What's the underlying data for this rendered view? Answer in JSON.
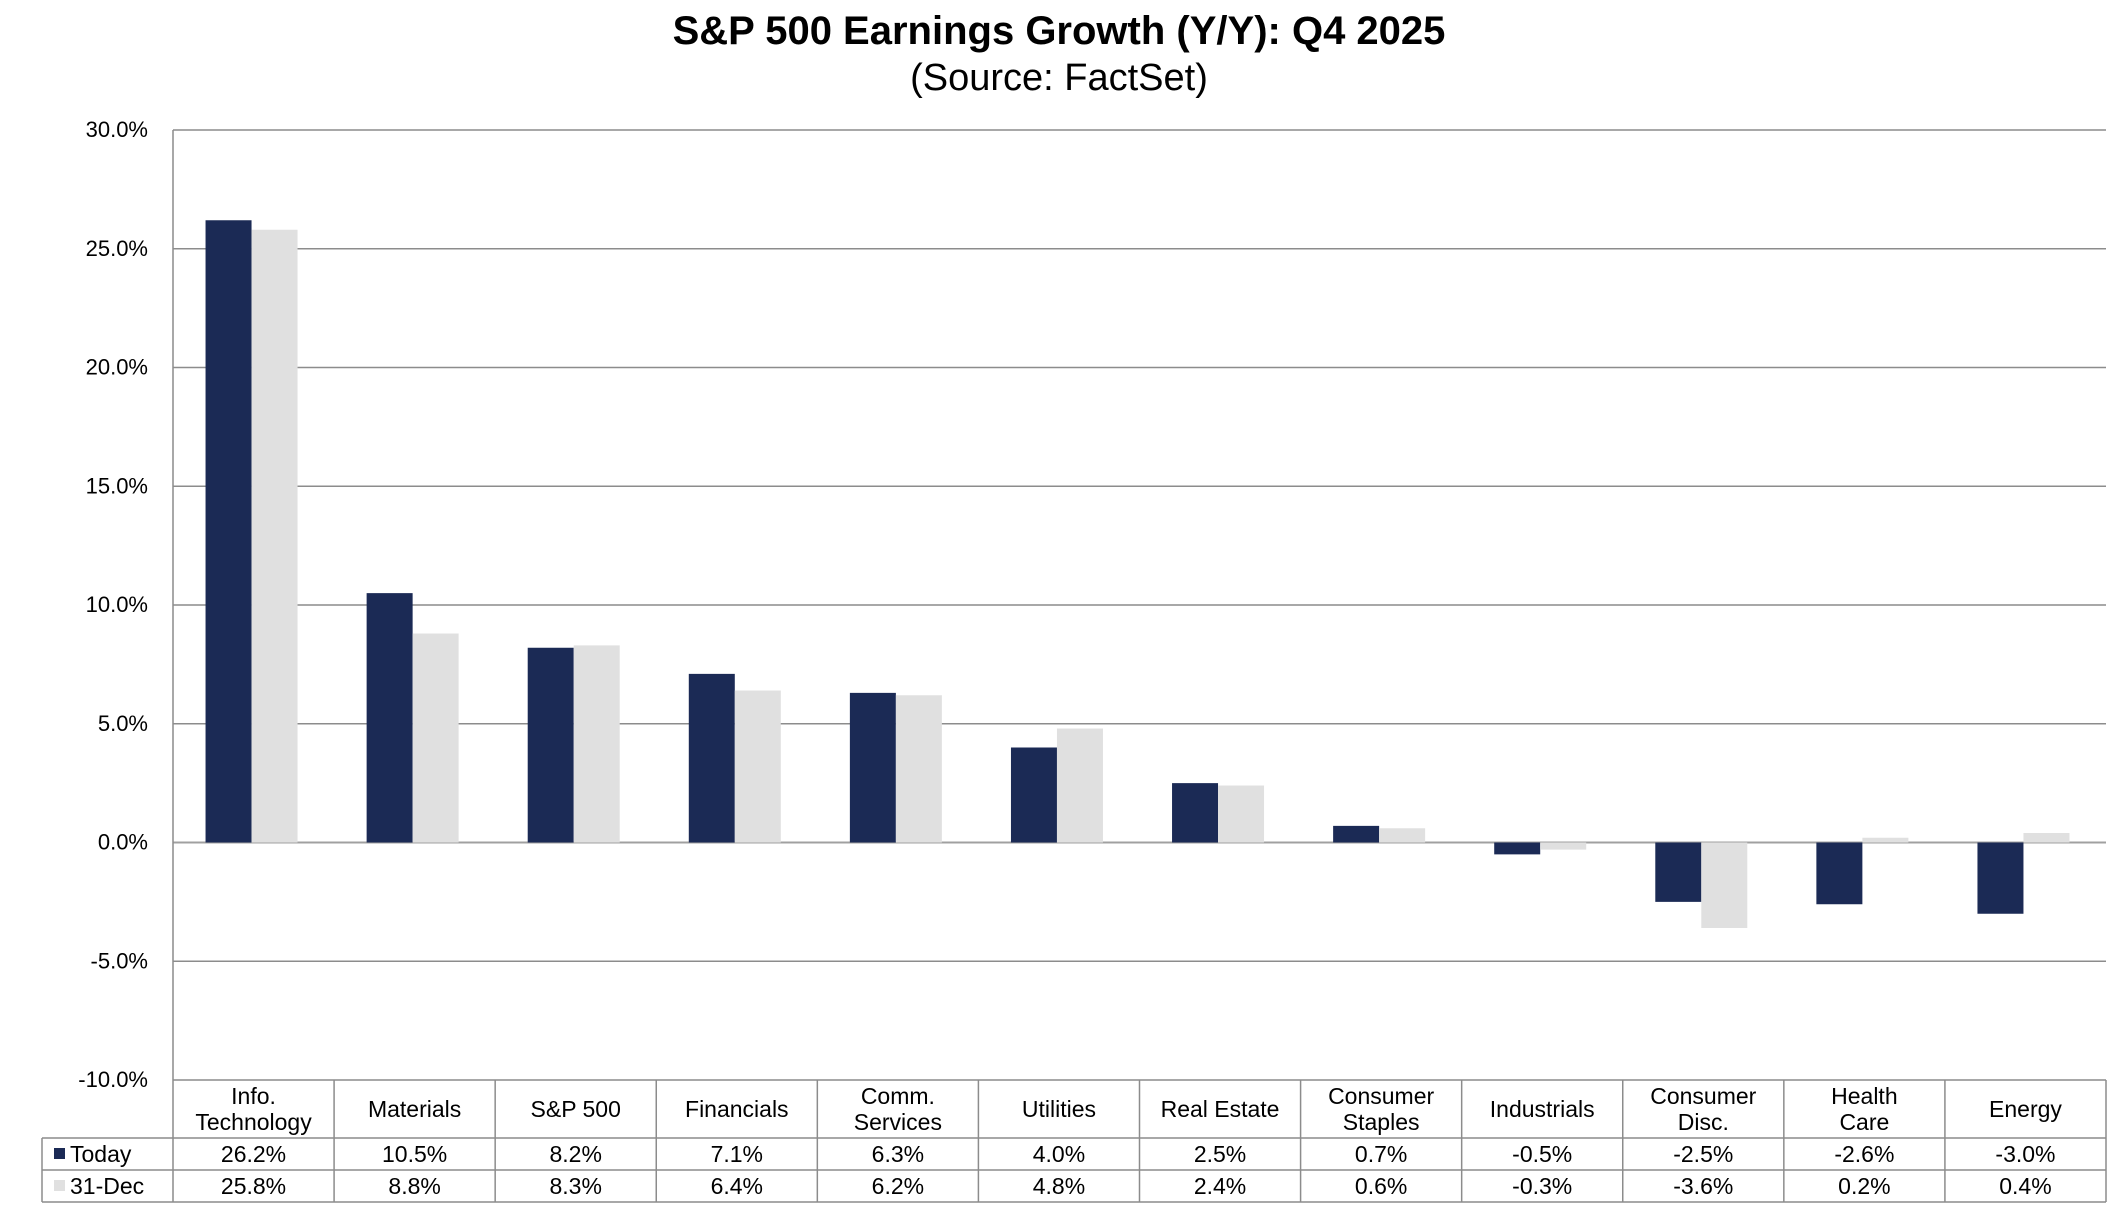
{
  "chart_data": {
    "type": "bar",
    "title": "S&P 500 Earnings Growth (Y/Y): Q4 2025",
    "subtitle": "(Source: FactSet)",
    "categories": [
      [
        "Info.",
        "Technology"
      ],
      [
        "Materials"
      ],
      [
        "S&P 500"
      ],
      [
        "Financials"
      ],
      [
        "Comm.",
        "Services"
      ],
      [
        "Utilities"
      ],
      [
        "Real Estate"
      ],
      [
        "Consumer",
        "Staples"
      ],
      [
        "Industrials"
      ],
      [
        "Consumer",
        "Disc."
      ],
      [
        "Health",
        "Care"
      ],
      [
        "Energy"
      ]
    ],
    "series": [
      {
        "name": "Today",
        "color": "#1b2a55",
        "values": [
          26.2,
          10.5,
          8.2,
          7.1,
          6.3,
          4.0,
          2.5,
          0.7,
          -0.5,
          -2.5,
          -2.6,
          -3.0
        ],
        "labels": [
          "26.2%",
          "10.5%",
          "8.2%",
          "7.1%",
          "6.3%",
          "4.0%",
          "2.5%",
          "0.7%",
          "-0.5%",
          "-2.5%",
          "-2.6%",
          "-3.0%"
        ]
      },
      {
        "name": "31-Dec",
        "color": "#e0e0e0",
        "values": [
          25.8,
          8.8,
          8.3,
          6.4,
          6.2,
          4.8,
          2.4,
          0.6,
          -0.3,
          -3.6,
          0.2,
          0.4
        ],
        "labels": [
          "25.8%",
          "8.8%",
          "8.3%",
          "6.4%",
          "6.2%",
          "4.8%",
          "2.4%",
          "0.6%",
          "-0.3%",
          "-3.6%",
          "0.2%",
          "0.4%"
        ]
      }
    ],
    "ylim": [
      -10,
      30
    ],
    "yticks": [
      "30.0%",
      "25.0%",
      "20.0%",
      "15.0%",
      "10.0%",
      "5.0%",
      "0.0%",
      "-5.0%",
      "-10.0%"
    ],
    "ytick_values": [
      30,
      25,
      20,
      15,
      10,
      5,
      0,
      -5,
      -10
    ],
    "grid": true,
    "legend": "data-table-bottom",
    "xlabel": "",
    "ylabel": ""
  }
}
